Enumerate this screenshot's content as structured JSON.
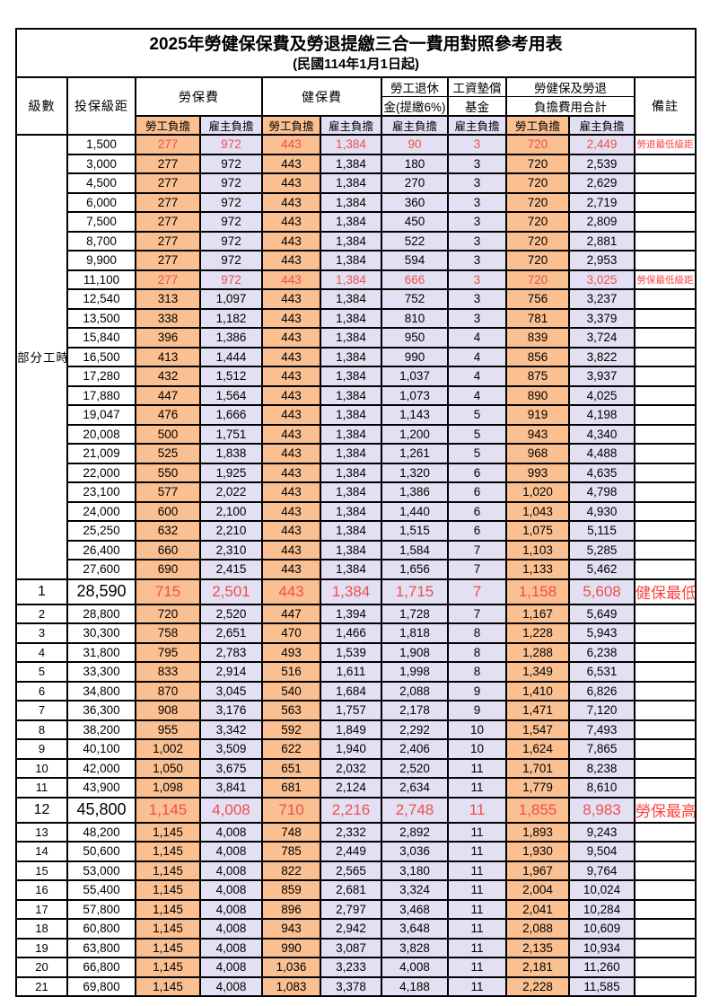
{
  "title": "2025年勞健保保費及勞退提繳三合一費用對照參考用表",
  "subtitle": "(民國114年1月1日起)",
  "columns": {
    "level": "級數",
    "bracket": "投保級距",
    "labor": "勞保費",
    "health": "健保費",
    "pension_l1": "勞工退休",
    "pension_l2": "金(提繳6%)",
    "wage_l1": "工資墊償",
    "wage_l2": "基金",
    "total_l1": "勞健保及勞退",
    "total_l2": "負擔費用合計",
    "remark": "備註",
    "subs": [
      "勞工負擔",
      "雇主負擔",
      "勞工負擔",
      "雇主負擔",
      "雇主負擔",
      "雇主負擔",
      "勞工負擔",
      "雇主負擔"
    ]
  },
  "group_label": "部分工時",
  "part_time_row_count": 23,
  "colors": {
    "employee_bg": "#FAC091",
    "employer_bg": "#E3E0F3",
    "value_red": "#EE4F4B",
    "remark_red": "#FF4343"
  },
  "rows": [
    {
      "level": "",
      "bracket": "1,500",
      "values": [
        "277",
        "972",
        "443",
        "1,384",
        "90",
        "3",
        "720",
        "2,449"
      ],
      "remark": "勞退最低級距",
      "red": true,
      "big": false
    },
    {
      "level": "",
      "bracket": "3,000",
      "values": [
        "277",
        "972",
        "443",
        "1,384",
        "180",
        "3",
        "720",
        "2,539"
      ],
      "remark": "",
      "red": false,
      "big": false
    },
    {
      "level": "",
      "bracket": "4,500",
      "values": [
        "277",
        "972",
        "443",
        "1,384",
        "270",
        "3",
        "720",
        "2,629"
      ],
      "remark": "",
      "red": false,
      "big": false
    },
    {
      "level": "",
      "bracket": "6,000",
      "values": [
        "277",
        "972",
        "443",
        "1,384",
        "360",
        "3",
        "720",
        "2,719"
      ],
      "remark": "",
      "red": false,
      "big": false
    },
    {
      "level": "",
      "bracket": "7,500",
      "values": [
        "277",
        "972",
        "443",
        "1,384",
        "450",
        "3",
        "720",
        "2,809"
      ],
      "remark": "",
      "red": false,
      "big": false
    },
    {
      "level": "",
      "bracket": "8,700",
      "values": [
        "277",
        "972",
        "443",
        "1,384",
        "522",
        "3",
        "720",
        "2,881"
      ],
      "remark": "",
      "red": false,
      "big": false
    },
    {
      "level": "",
      "bracket": "9,900",
      "values": [
        "277",
        "972",
        "443",
        "1,384",
        "594",
        "3",
        "720",
        "2,953"
      ],
      "remark": "",
      "red": false,
      "big": false
    },
    {
      "level": "",
      "bracket": "11,100",
      "values": [
        "277",
        "972",
        "443",
        "1,384",
        "666",
        "3",
        "720",
        "3,025"
      ],
      "remark": "勞保最低級距",
      "red": true,
      "big": false
    },
    {
      "level": "",
      "bracket": "12,540",
      "values": [
        "313",
        "1,097",
        "443",
        "1,384",
        "752",
        "3",
        "756",
        "3,237"
      ],
      "remark": "",
      "red": false,
      "big": false
    },
    {
      "level": "",
      "bracket": "13,500",
      "values": [
        "338",
        "1,182",
        "443",
        "1,384",
        "810",
        "3",
        "781",
        "3,379"
      ],
      "remark": "",
      "red": false,
      "big": false
    },
    {
      "level": "",
      "bracket": "15,840",
      "values": [
        "396",
        "1,386",
        "443",
        "1,384",
        "950",
        "4",
        "839",
        "3,724"
      ],
      "remark": "",
      "red": false,
      "big": false
    },
    {
      "level": "",
      "bracket": "16,500",
      "values": [
        "413",
        "1,444",
        "443",
        "1,384",
        "990",
        "4",
        "856",
        "3,822"
      ],
      "remark": "",
      "red": false,
      "big": false
    },
    {
      "level": "",
      "bracket": "17,280",
      "values": [
        "432",
        "1,512",
        "443",
        "1,384",
        "1,037",
        "4",
        "875",
        "3,937"
      ],
      "remark": "",
      "red": false,
      "big": false
    },
    {
      "level": "",
      "bracket": "17,880",
      "values": [
        "447",
        "1,564",
        "443",
        "1,384",
        "1,073",
        "4",
        "890",
        "4,025"
      ],
      "remark": "",
      "red": false,
      "big": false
    },
    {
      "level": "",
      "bracket": "19,047",
      "values": [
        "476",
        "1,666",
        "443",
        "1,384",
        "1,143",
        "5",
        "919",
        "4,198"
      ],
      "remark": "",
      "red": false,
      "big": false
    },
    {
      "level": "",
      "bracket": "20,008",
      "values": [
        "500",
        "1,751",
        "443",
        "1,384",
        "1,200",
        "5",
        "943",
        "4,340"
      ],
      "remark": "",
      "red": false,
      "big": false
    },
    {
      "level": "",
      "bracket": "21,009",
      "values": [
        "525",
        "1,838",
        "443",
        "1,384",
        "1,261",
        "5",
        "968",
        "4,488"
      ],
      "remark": "",
      "red": false,
      "big": false
    },
    {
      "level": "",
      "bracket": "22,000",
      "values": [
        "550",
        "1,925",
        "443",
        "1,384",
        "1,320",
        "6",
        "993",
        "4,635"
      ],
      "remark": "",
      "red": false,
      "big": false
    },
    {
      "level": "",
      "bracket": "23,100",
      "values": [
        "577",
        "2,022",
        "443",
        "1,384",
        "1,386",
        "6",
        "1,020",
        "4,798"
      ],
      "remark": "",
      "red": false,
      "big": false
    },
    {
      "level": "",
      "bracket": "24,000",
      "values": [
        "600",
        "2,100",
        "443",
        "1,384",
        "1,440",
        "6",
        "1,043",
        "4,930"
      ],
      "remark": "",
      "red": false,
      "big": false
    },
    {
      "level": "",
      "bracket": "25,250",
      "values": [
        "632",
        "2,210",
        "443",
        "1,384",
        "1,515",
        "6",
        "1,075",
        "5,115"
      ],
      "remark": "",
      "red": false,
      "big": false
    },
    {
      "level": "",
      "bracket": "26,400",
      "values": [
        "660",
        "2,310",
        "443",
        "1,384",
        "1,584",
        "7",
        "1,103",
        "5,285"
      ],
      "remark": "",
      "red": false,
      "big": false
    },
    {
      "level": "",
      "bracket": "27,600",
      "values": [
        "690",
        "2,415",
        "443",
        "1,384",
        "1,656",
        "7",
        "1,133",
        "5,462"
      ],
      "remark": "",
      "red": false,
      "big": false
    },
    {
      "level": "1",
      "bracket": "28,590",
      "values": [
        "715",
        "2,501",
        "443",
        "1,384",
        "1,715",
        "7",
        "1,158",
        "5,608"
      ],
      "remark": "健保最低級距",
      "red": true,
      "big": true
    },
    {
      "level": "2",
      "bracket": "28,800",
      "values": [
        "720",
        "2,520",
        "447",
        "1,394",
        "1,728",
        "7",
        "1,167",
        "5,649"
      ],
      "remark": "",
      "red": false,
      "big": false
    },
    {
      "level": "3",
      "bracket": "30,300",
      "values": [
        "758",
        "2,651",
        "470",
        "1,466",
        "1,818",
        "8",
        "1,228",
        "5,943"
      ],
      "remark": "",
      "red": false,
      "big": false
    },
    {
      "level": "4",
      "bracket": "31,800",
      "values": [
        "795",
        "2,783",
        "493",
        "1,539",
        "1,908",
        "8",
        "1,288",
        "6,238"
      ],
      "remark": "",
      "red": false,
      "big": false
    },
    {
      "level": "5",
      "bracket": "33,300",
      "values": [
        "833",
        "2,914",
        "516",
        "1,611",
        "1,998",
        "8",
        "1,349",
        "6,531"
      ],
      "remark": "",
      "red": false,
      "big": false
    },
    {
      "level": "6",
      "bracket": "34,800",
      "values": [
        "870",
        "3,045",
        "540",
        "1,684",
        "2,088",
        "9",
        "1,410",
        "6,826"
      ],
      "remark": "",
      "red": false,
      "big": false
    },
    {
      "level": "7",
      "bracket": "36,300",
      "values": [
        "908",
        "3,176",
        "563",
        "1,757",
        "2,178",
        "9",
        "1,471",
        "7,120"
      ],
      "remark": "",
      "red": false,
      "big": false
    },
    {
      "level": "8",
      "bracket": "38,200",
      "values": [
        "955",
        "3,342",
        "592",
        "1,849",
        "2,292",
        "10",
        "1,547",
        "7,493"
      ],
      "remark": "",
      "red": false,
      "big": false
    },
    {
      "level": "9",
      "bracket": "40,100",
      "values": [
        "1,002",
        "3,509",
        "622",
        "1,940",
        "2,406",
        "10",
        "1,624",
        "7,865"
      ],
      "remark": "",
      "red": false,
      "big": false
    },
    {
      "level": "10",
      "bracket": "42,000",
      "values": [
        "1,050",
        "3,675",
        "651",
        "2,032",
        "2,520",
        "11",
        "1,701",
        "8,238"
      ],
      "remark": "",
      "red": false,
      "big": false
    },
    {
      "level": "11",
      "bracket": "43,900",
      "values": [
        "1,098",
        "3,841",
        "681",
        "2,124",
        "2,634",
        "11",
        "1,779",
        "8,610"
      ],
      "remark": "",
      "red": false,
      "big": false
    },
    {
      "level": "12",
      "bracket": "45,800",
      "values": [
        "1,145",
        "4,008",
        "710",
        "2,216",
        "2,748",
        "11",
        "1,855",
        "8,983"
      ],
      "remark": "勞保最高級距",
      "red": true,
      "big": true
    },
    {
      "level": "13",
      "bracket": "48,200",
      "values": [
        "1,145",
        "4,008",
        "748",
        "2,332",
        "2,892",
        "11",
        "1,893",
        "9,243"
      ],
      "remark": "",
      "red": false,
      "big": false
    },
    {
      "level": "14",
      "bracket": "50,600",
      "values": [
        "1,145",
        "4,008",
        "785",
        "2,449",
        "3,036",
        "11",
        "1,930",
        "9,504"
      ],
      "remark": "",
      "red": false,
      "big": false
    },
    {
      "level": "15",
      "bracket": "53,000",
      "values": [
        "1,145",
        "4,008",
        "822",
        "2,565",
        "3,180",
        "11",
        "1,967",
        "9,764"
      ],
      "remark": "",
      "red": false,
      "big": false
    },
    {
      "level": "16",
      "bracket": "55,400",
      "values": [
        "1,145",
        "4,008",
        "859",
        "2,681",
        "3,324",
        "11",
        "2,004",
        "10,024"
      ],
      "remark": "",
      "red": false,
      "big": false
    },
    {
      "level": "17",
      "bracket": "57,800",
      "values": [
        "1,145",
        "4,008",
        "896",
        "2,797",
        "3,468",
        "11",
        "2,041",
        "10,284"
      ],
      "remark": "",
      "red": false,
      "big": false
    },
    {
      "level": "18",
      "bracket": "60,800",
      "values": [
        "1,145",
        "4,008",
        "943",
        "2,942",
        "3,648",
        "11",
        "2,088",
        "10,609"
      ],
      "remark": "",
      "red": false,
      "big": false
    },
    {
      "level": "19",
      "bracket": "63,800",
      "values": [
        "1,145",
        "4,008",
        "990",
        "3,087",
        "3,828",
        "11",
        "2,135",
        "10,934"
      ],
      "remark": "",
      "red": false,
      "big": false
    },
    {
      "level": "20",
      "bracket": "66,800",
      "values": [
        "1,145",
        "4,008",
        "1,036",
        "3,233",
        "4,008",
        "11",
        "2,181",
        "11,260"
      ],
      "remark": "",
      "red": false,
      "big": false
    },
    {
      "level": "21",
      "bracket": "69,800",
      "values": [
        "1,145",
        "4,008",
        "1,083",
        "3,378",
        "4,188",
        "11",
        "2,228",
        "11,585"
      ],
      "remark": "",
      "red": false,
      "big": false
    }
  ]
}
